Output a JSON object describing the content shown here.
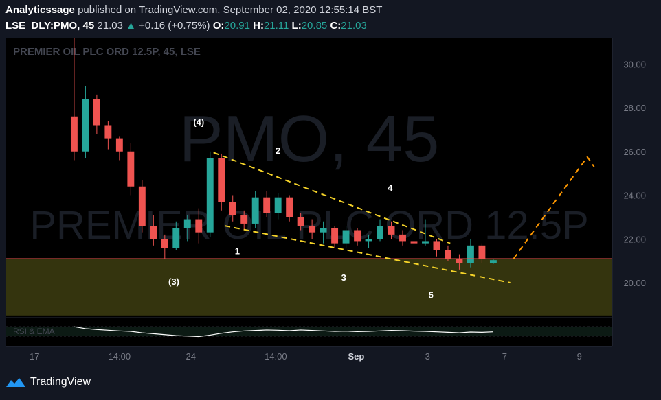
{
  "header": {
    "publisher": "Analyticssage",
    "published_text": "published on TradingView.com, September 02, 2020 12:55:14 BST",
    "symbol_line": "LSE_DLY:PMO, 45",
    "last_price": "21.03",
    "change_arrow": "▲",
    "change": "+0.16 (+0.75%)",
    "open_label": "O:",
    "open": "20.91",
    "high_label": "H:",
    "high": "21.11",
    "low_label": "L:",
    "low": "20.85",
    "close_label": "C:",
    "close": "21.03"
  },
  "footer": {
    "brand": "TradingView"
  },
  "colors": {
    "up": "#26a69a",
    "down": "#ef5350",
    "trend": "#f5d329",
    "projection": "#ff9800",
    "support_zone": "#3a3a10",
    "support_line": "#ef5350",
    "rsi": "#ffffff"
  },
  "chart_data": {
    "type": "candlestick",
    "title": "PREMIER OIL PLC ORD 12.5P, 45, LSE",
    "watermark_symbol": "PMO, 45",
    "watermark_name": "PREMIER OIL PLC ORD 12.5P",
    "y_axis": {
      "min": 18.4,
      "max": 31.2,
      "ticks": [
        "30.00",
        "28.00",
        "26.00",
        "24.00",
        "22.00",
        "20.00"
      ],
      "tick_values": [
        30,
        28,
        26,
        24,
        22,
        20
      ],
      "position": "right"
    },
    "x_axis": {
      "ticks": [
        "17",
        "14:00",
        "24",
        "14:00",
        "Sep",
        "3",
        "7",
        "9"
      ],
      "tick_index": [
        -3.5,
        4,
        10.3,
        17.8,
        24.9,
        31.2,
        38,
        44.6
      ],
      "index_min": -6,
      "index_max": 47.5
    },
    "candles": [
      {
        "o": 27.6,
        "h": 31.2,
        "l": 25.6,
        "c": 26.0
      },
      {
        "o": 26.0,
        "h": 29.0,
        "l": 25.7,
        "c": 28.4
      },
      {
        "o": 28.4,
        "h": 28.6,
        "l": 26.8,
        "c": 27.2
      },
      {
        "o": 27.2,
        "h": 27.4,
        "l": 26.1,
        "c": 26.6
      },
      {
        "o": 26.6,
        "h": 26.7,
        "l": 25.6,
        "c": 26.0
      },
      {
        "o": 26.0,
        "h": 26.4,
        "l": 24.0,
        "c": 24.4
      },
      {
        "o": 24.4,
        "h": 24.7,
        "l": 22.3,
        "c": 22.6
      },
      {
        "o": 22.6,
        "h": 23.1,
        "l": 21.7,
        "c": 22.0
      },
      {
        "o": 22.0,
        "h": 22.2,
        "l": 21.1,
        "c": 21.6
      },
      {
        "o": 21.6,
        "h": 22.8,
        "l": 21.5,
        "c": 22.5
      },
      {
        "o": 22.5,
        "h": 23.1,
        "l": 21.9,
        "c": 22.9
      },
      {
        "o": 22.9,
        "h": 23.4,
        "l": 21.8,
        "c": 22.3
      },
      {
        "o": 22.3,
        "h": 26.0,
        "l": 22.1,
        "c": 25.7
      },
      {
        "o": 25.7,
        "h": 25.9,
        "l": 23.3,
        "c": 23.7
      },
      {
        "o": 23.7,
        "h": 24.0,
        "l": 22.8,
        "c": 23.1
      },
      {
        "o": 23.1,
        "h": 23.3,
        "l": 22.4,
        "c": 22.7
      },
      {
        "o": 22.7,
        "h": 24.2,
        "l": 22.5,
        "c": 23.9
      },
      {
        "o": 23.9,
        "h": 24.2,
        "l": 23.0,
        "c": 23.2
      },
      {
        "o": 23.2,
        "h": 24.1,
        "l": 22.9,
        "c": 23.9
      },
      {
        "o": 23.9,
        "h": 24.0,
        "l": 22.8,
        "c": 23.0
      },
      {
        "o": 23.0,
        "h": 23.2,
        "l": 22.4,
        "c": 22.6
      },
      {
        "o": 22.6,
        "h": 22.9,
        "l": 22.0,
        "c": 22.3
      },
      {
        "o": 22.3,
        "h": 22.8,
        "l": 21.8,
        "c": 22.5
      },
      {
        "o": 22.5,
        "h": 22.6,
        "l": 21.6,
        "c": 21.8
      },
      {
        "o": 21.8,
        "h": 22.6,
        "l": 21.6,
        "c": 22.4
      },
      {
        "o": 22.4,
        "h": 22.5,
        "l": 21.7,
        "c": 21.9
      },
      {
        "o": 21.9,
        "h": 22.2,
        "l": 21.6,
        "c": 22.0
      },
      {
        "o": 22.0,
        "h": 22.9,
        "l": 21.9,
        "c": 22.6
      },
      {
        "o": 22.6,
        "h": 22.8,
        "l": 22.0,
        "c": 22.2
      },
      {
        "o": 22.2,
        "h": 22.4,
        "l": 21.7,
        "c": 21.9
      },
      {
        "o": 21.9,
        "h": 22.1,
        "l": 21.6,
        "c": 21.8
      },
      {
        "o": 21.8,
        "h": 22.9,
        "l": 21.7,
        "c": 21.9
      },
      {
        "o": 21.9,
        "h": 22.0,
        "l": 21.2,
        "c": 21.5
      },
      {
        "o": 21.5,
        "h": 21.7,
        "l": 21.0,
        "c": 21.1
      },
      {
        "o": 21.1,
        "h": 21.3,
        "l": 20.6,
        "c": 20.9
      },
      {
        "o": 20.9,
        "h": 22.0,
        "l": 20.7,
        "c": 21.7
      },
      {
        "o": 21.7,
        "h": 21.8,
        "l": 20.9,
        "c": 21.1
      },
      {
        "o": 20.91,
        "h": 21.11,
        "l": 20.85,
        "c": 21.03
      }
    ],
    "trendlines": [
      {
        "x1": 12.3,
        "y1": 25.95,
        "x2": 33.2,
        "y2": 21.8
      },
      {
        "x1": 13.3,
        "y1": 22.6,
        "x2": 38.5,
        "y2": 20.0
      }
    ],
    "projection": [
      {
        "x": 38.8,
        "y": 21.1
      },
      {
        "x": 45.3,
        "y": 25.75
      },
      {
        "x": 45.9,
        "y": 25.3
      }
    ],
    "support": {
      "level": 21.1,
      "zone_bottom": 18.5
    },
    "wave_labels": [
      {
        "text": "(4)",
        "x": 11.0,
        "y": 27.2
      },
      {
        "text": "2",
        "x": 18.0,
        "y": 25.9
      },
      {
        "text": "4",
        "x": 27.9,
        "y": 24.2
      },
      {
        "text": "1",
        "x": 14.4,
        "y": 21.3
      },
      {
        "text": "(3)",
        "x": 8.8,
        "y": 19.9
      },
      {
        "text": "3",
        "x": 23.8,
        "y": 20.1
      },
      {
        "text": "5",
        "x": 31.5,
        "y": 19.3
      }
    ],
    "rsi": {
      "label": "RSI & EMA",
      "min": 0,
      "max": 100,
      "values": [
        70,
        62,
        58,
        55,
        52,
        50,
        44,
        40,
        36,
        32,
        30,
        28,
        34,
        42,
        48,
        52,
        54,
        56,
        55,
        53,
        56,
        54,
        52,
        50,
        51,
        49,
        50,
        52,
        54,
        53,
        51,
        50,
        48,
        46,
        44,
        47,
        46,
        48
      ],
      "levels": [
        70,
        30
      ]
    }
  }
}
